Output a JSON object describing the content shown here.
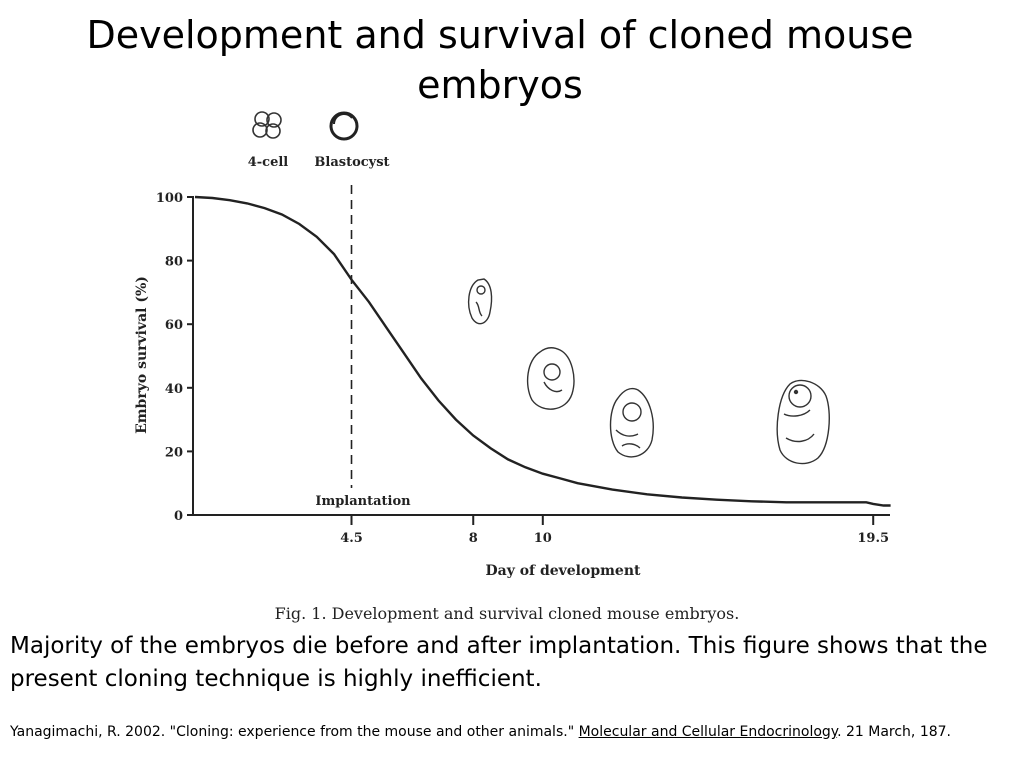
{
  "slide": {
    "title_line1": "Development and survival of cloned mouse",
    "title_line2": "embryos",
    "body_text": "Majority of the embryos die before and after implantation.  This figure shows that the present cloning technique is highly inefficient.",
    "citation": {
      "prefix": "Yanagimachi, R.  2002.  \"Cloning: experience from the mouse and other animals.\" ",
      "journal": "Molecular and Cellular Endocrinology",
      "suffix": ".  21 March, 187."
    }
  },
  "figure": {
    "caption": "Fig. 1. Development and survival cloned mouse embryos.",
    "stage_labels": [
      "4-cell",
      "Blastocyst"
    ],
    "implantation_label": "Implantation"
  },
  "chart_data": {
    "type": "line",
    "xlabel": "Day of development",
    "ylabel": "Embryo survival (%)",
    "ylim": [
      0,
      100
    ],
    "yticks": [
      0,
      20,
      40,
      60,
      80,
      100
    ],
    "xticks": [
      4.5,
      8,
      10,
      19.5
    ],
    "xtick_labels": [
      "4.5",
      "8",
      "10",
      "19.5"
    ],
    "grid": false,
    "legend": "none",
    "implantation_day": 4.5,
    "series": [
      {
        "x": [
          0,
          0.5,
          1,
          1.5,
          2,
          2.5,
          3,
          3.5,
          4,
          4.5,
          5,
          5.5,
          6,
          6.5,
          7,
          7.5,
          8,
          8.5,
          9,
          9.5,
          10,
          10.5,
          11,
          12,
          13,
          14,
          15,
          16,
          17,
          18,
          19,
          19.3,
          19.5,
          19.8,
          20
        ],
        "y": [
          100,
          99.7,
          99,
          98,
          96.5,
          94.5,
          91.5,
          87.5,
          82,
          74,
          67,
          59,
          51,
          43,
          36,
          30,
          25,
          21,
          17.5,
          15,
          13,
          11.5,
          10,
          8,
          6.5,
          5.5,
          4.8,
          4.3,
          4,
          4,
          4,
          4,
          3.5,
          3,
          3
        ]
      }
    ]
  }
}
